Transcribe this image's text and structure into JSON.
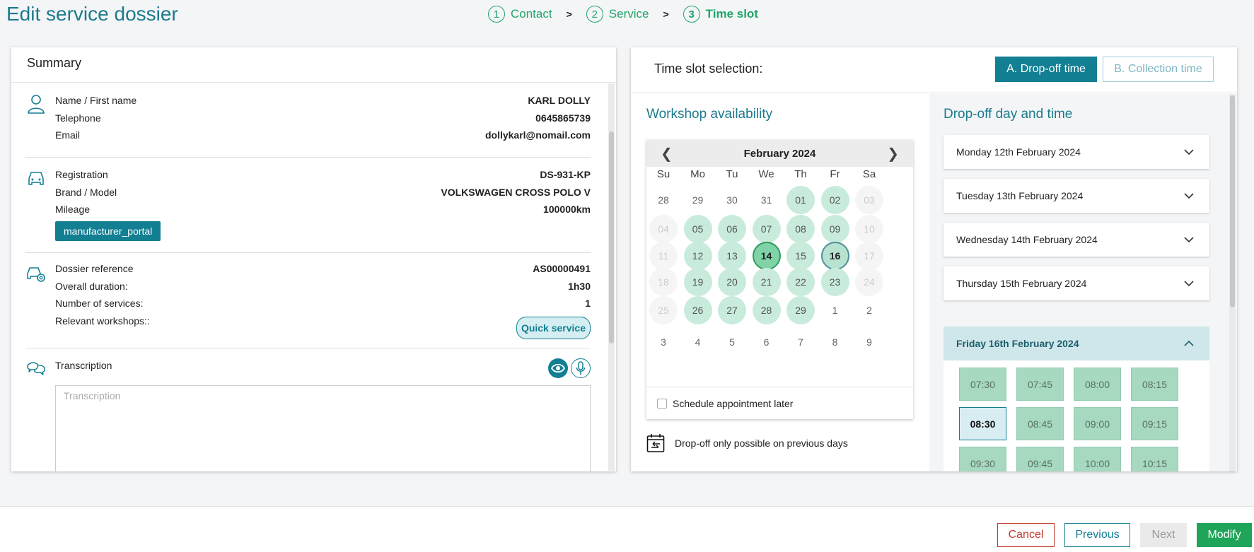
{
  "page": {
    "title": "Edit service dossier"
  },
  "stepper": {
    "steps": [
      {
        "num": "1",
        "label": "Contact"
      },
      {
        "num": "2",
        "label": "Service"
      },
      {
        "num": "3",
        "label": "Time slot"
      }
    ],
    "separator": ">"
  },
  "summary": {
    "title": "Summary",
    "contact": {
      "name_label": "Name / First name",
      "name_value": "KARL DOLLY",
      "phone_label": "Telephone",
      "phone_value": "0645865739",
      "email_label": "Email",
      "email_value": "dollykarl@nomail.com"
    },
    "vehicle": {
      "reg_label": "Registration",
      "reg_value": "DS-931-KP",
      "model_label": "Brand / Model",
      "model_value": "VOLKSWAGEN CROSS POLO V",
      "mileage_label": "Mileage",
      "mileage_value": "100000km",
      "tag": "manufacturer_portal"
    },
    "dossier": {
      "ref_label": "Dossier reference",
      "ref_value": "AS00000491",
      "duration_label": "Overall duration:",
      "duration_value": "1h30",
      "services_label": "Number of services:",
      "services_value": "1",
      "workshops_label": "Relevant workshops::",
      "workshops_value": "Quick service"
    },
    "transcription": {
      "label": "Transcription",
      "placeholder": "Transcription"
    }
  },
  "timeslot": {
    "title": "Time slot selection:",
    "btn_dropoff": "A. Drop-off time",
    "btn_collection": "B. Collection time",
    "availability_title": "Workshop availability",
    "dropoff_title": "Drop-off day and time",
    "calendar": {
      "month": "February 2024",
      "prev": "❮",
      "next": "❯",
      "dow": [
        "Su",
        "Mo",
        "Tu",
        "We",
        "Th",
        "Fr",
        "Sa"
      ],
      "weeks": [
        [
          [
            "28",
            "plain"
          ],
          [
            "29",
            "plain"
          ],
          [
            "30",
            "plain"
          ],
          [
            "31",
            "plain"
          ],
          [
            "01",
            "avail"
          ],
          [
            "02",
            "avail"
          ],
          [
            "03",
            "disabled"
          ]
        ],
        [
          [
            "04",
            "disabled"
          ],
          [
            "05",
            "avail"
          ],
          [
            "06",
            "avail"
          ],
          [
            "07",
            "avail"
          ],
          [
            "08",
            "avail"
          ],
          [
            "09",
            "avail"
          ],
          [
            "10",
            "disabled"
          ]
        ],
        [
          [
            "11",
            "disabled"
          ],
          [
            "12",
            "avail"
          ],
          [
            "13",
            "avail"
          ],
          [
            "14",
            "selected"
          ],
          [
            "15",
            "avail"
          ],
          [
            "16",
            "hover"
          ],
          [
            "17",
            "disabled"
          ]
        ],
        [
          [
            "18",
            "disabled"
          ],
          [
            "19",
            "avail"
          ],
          [
            "20",
            "avail"
          ],
          [
            "21",
            "avail"
          ],
          [
            "22",
            "avail"
          ],
          [
            "23",
            "avail"
          ],
          [
            "24",
            "disabled"
          ]
        ],
        [
          [
            "25",
            "disabled"
          ],
          [
            "26",
            "avail"
          ],
          [
            "27",
            "avail"
          ],
          [
            "28",
            "avail"
          ],
          [
            "29",
            "avail"
          ],
          [
            "1",
            "plain"
          ],
          [
            "2",
            "plain"
          ]
        ],
        [
          [
            "3",
            "plain"
          ],
          [
            "4",
            "plain"
          ],
          [
            "5",
            "plain"
          ],
          [
            "6",
            "plain"
          ],
          [
            "7",
            "plain"
          ],
          [
            "8",
            "plain"
          ],
          [
            "9",
            "plain"
          ]
        ]
      ],
      "schedule_later": "Schedule appointment later"
    },
    "note": "Drop-off only possible on previous days",
    "days": [
      "Monday 12th February 2024",
      "Tuesday 13th February 2024",
      "Wednesday 14th February 2024",
      "Thursday 15th February 2024",
      "Friday 16th February 2024"
    ],
    "slots": [
      "07:30",
      "07:45",
      "08:00",
      "08:15",
      "08:30",
      "08:45",
      "09:00",
      "09:15",
      "09:30",
      "09:45",
      "10:00",
      "10:15"
    ],
    "selected_slot": "08:30"
  },
  "footer": {
    "cancel": "Cancel",
    "previous": "Previous",
    "next": "Next",
    "modify": "Modify"
  },
  "colors": {
    "brand": "#137f93",
    "accent_green": "#1fa56a",
    "danger": "#c0392b"
  }
}
